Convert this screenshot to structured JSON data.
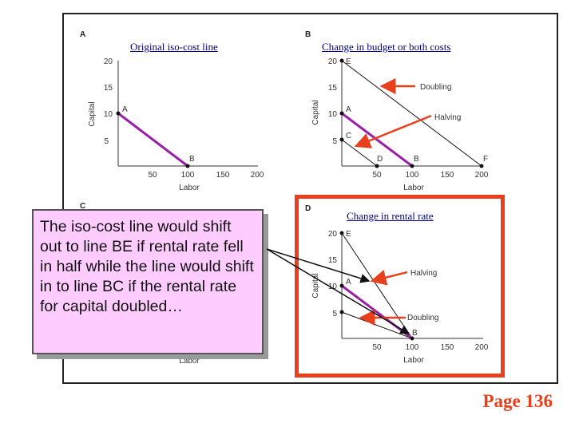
{
  "panels": {
    "a": {
      "letter": "A",
      "title": "Original iso-cost line"
    },
    "b": {
      "letter": "B",
      "title": "Change in budget or both costs",
      "label_doubling": "Doubling",
      "label_halving": "Halving"
    },
    "c": {
      "letter": "C",
      "xaxis_fragment": "Labor"
    },
    "d": {
      "letter": "D",
      "title": "Change in rental rate",
      "label_halving": "Halving",
      "label_doubling": "Doubling"
    }
  },
  "axes": {
    "xlabel": "Labor",
    "ylabel": "Capital",
    "yticks": [
      "5",
      "10",
      "15",
      "20"
    ],
    "xticks": [
      "50",
      "100",
      "150",
      "200"
    ]
  },
  "points": {
    "A": "A",
    "B": "B",
    "C": "C",
    "D": "D",
    "E": "E",
    "F": "F"
  },
  "callout": {
    "text": "The iso-cost line would shift out to line BE if rental rate fell in half while the line would shift in to line BC if the rental rate for capital doubled…"
  },
  "page": {
    "label": "Page 136"
  },
  "colors": {
    "isocost": "#9b1fa8",
    "arrow": "#e8401c",
    "highlight": "#e8401c",
    "callout_bg": "#ffccff"
  }
}
